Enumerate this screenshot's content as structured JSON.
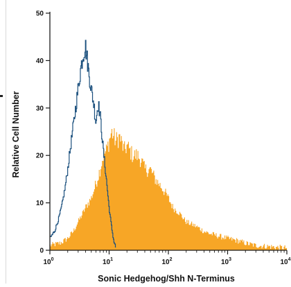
{
  "chart_data": {
    "type": "area",
    "title": "",
    "xlabel": "Sonic Hedgehog/Shh N-Terminus",
    "ylabel": "Relative Cell Number",
    "x_scale": "log",
    "xlim": [
      1,
      10000
    ],
    "ylim": [
      0,
      50
    ],
    "x_ticks": [
      1,
      10,
      100,
      1000,
      10000
    ],
    "x_tick_labels": [
      {
        "base": "10",
        "exp": "0"
      },
      {
        "base": "10",
        "exp": "1"
      },
      {
        "base": "10",
        "exp": "2"
      },
      {
        "base": "10",
        "exp": "3"
      },
      {
        "base": "10",
        "exp": "4"
      }
    ],
    "y_ticks": [
      0,
      10,
      20,
      30,
      40,
      50
    ],
    "y_tick_labels": [
      "0",
      "10",
      "20",
      "30",
      "40",
      "50"
    ],
    "grid": false,
    "legend": "none",
    "series": [
      {
        "style": "line",
        "color": "#1a4f7d",
        "x": [
          1.0,
          1.2,
          1.4,
          1.6,
          1.8,
          2.0,
          2.3,
          2.6,
          3.0,
          3.3,
          3.6,
          4.0,
          4.3,
          4.6,
          5.0,
          5.5,
          6.0,
          6.5,
          7.0,
          7.5,
          8.0,
          9.0,
          10.0,
          11.0,
          12.0,
          13.0
        ],
        "y": [
          2.5,
          4,
          6.5,
          9.5,
          13,
          17,
          23,
          28,
          34,
          38,
          41,
          43,
          40,
          37,
          34,
          31,
          27,
          31,
          29,
          25,
          21,
          15,
          9,
          5,
          2,
          0.5
        ]
      },
      {
        "style": "filled",
        "color": "#f7a626",
        "x": [
          1.0,
          1.5,
          2.0,
          2.5,
          3.0,
          3.5,
          4.0,
          5.0,
          6.0,
          7.0,
          8.0,
          9.0,
          10.0,
          11.0,
          12.0,
          13.0,
          15.0,
          18.0,
          20.0,
          25.0,
          30.0,
          35.0,
          40.0,
          50.0,
          60.0,
          70.0,
          80.0,
          100.0,
          120.0,
          150.0,
          200.0,
          300.0,
          400.0,
          500.0,
          700.0,
          1000.0,
          1500.0,
          2000.0,
          3000.0,
          5000.0,
          7000.0,
          10000.0
        ],
        "y": [
          1.0,
          1.5,
          2.5,
          4.0,
          6.0,
          7.5,
          9.0,
          11.0,
          14.0,
          17.0,
          20.0,
          21.0,
          23.0,
          25.0,
          24.0,
          23.0,
          24.0,
          21.0,
          22.0,
          20.0,
          20.0,
          19.0,
          17.0,
          17.0,
          15.0,
          14.0,
          13.0,
          11.0,
          9.0,
          8.0,
          6.0,
          5.0,
          4.0,
          3.5,
          3.0,
          2.5,
          2.0,
          1.5,
          1.0,
          0.8,
          0.6,
          0.5
        ]
      }
    ]
  }
}
